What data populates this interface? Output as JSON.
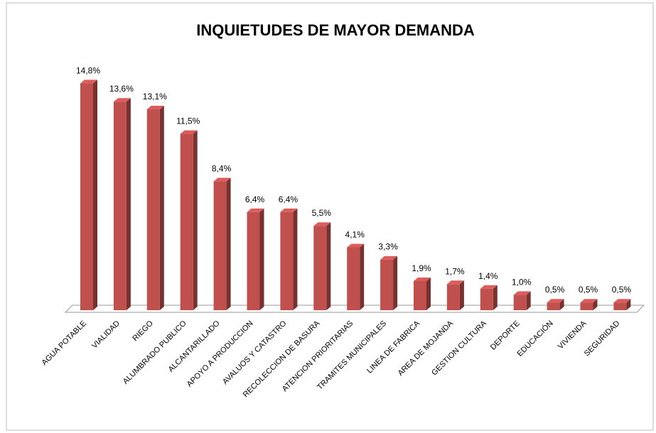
{
  "chart_data": {
    "type": "bar",
    "title": "INQUIETUDES DE MAYOR DEMANDA",
    "categories": [
      "AGUA POTABLE",
      "VIALIDAD",
      "RIEGO",
      "ALUMBRADO PUBLICO",
      "ALCANTARILLADO",
      "APOYO A PRODUCCION",
      "AVALUOS Y CATASTRO",
      "RECOLECCION DE BASURA",
      "ATENCION PRIORITARIAS",
      "TRAMITES MUNICIPALES",
      "LINEA DE FABRICA",
      "AREA DE MOJANDA",
      "GESTION CULTURA",
      "DEPORTE",
      "EDUCACIÓN",
      "VIVIENDA",
      "SEGURIDAD"
    ],
    "values": [
      14.8,
      13.6,
      13.1,
      11.5,
      8.4,
      6.4,
      6.4,
      5.5,
      4.1,
      3.3,
      1.9,
      1.7,
      1.4,
      1.0,
      0.5,
      0.5,
      0.5
    ],
    "value_labels": [
      "14,8%",
      "13,6%",
      "13,1%",
      "11,5%",
      "8,4%",
      "6,4%",
      "6,4%",
      "5,5%",
      "4,1%",
      "3,3%",
      "1,9%",
      "1,7%",
      "1,4%",
      "1,0%",
      "0,5%",
      "0,5%",
      "0,5%"
    ],
    "color": "#c0504d"
  }
}
